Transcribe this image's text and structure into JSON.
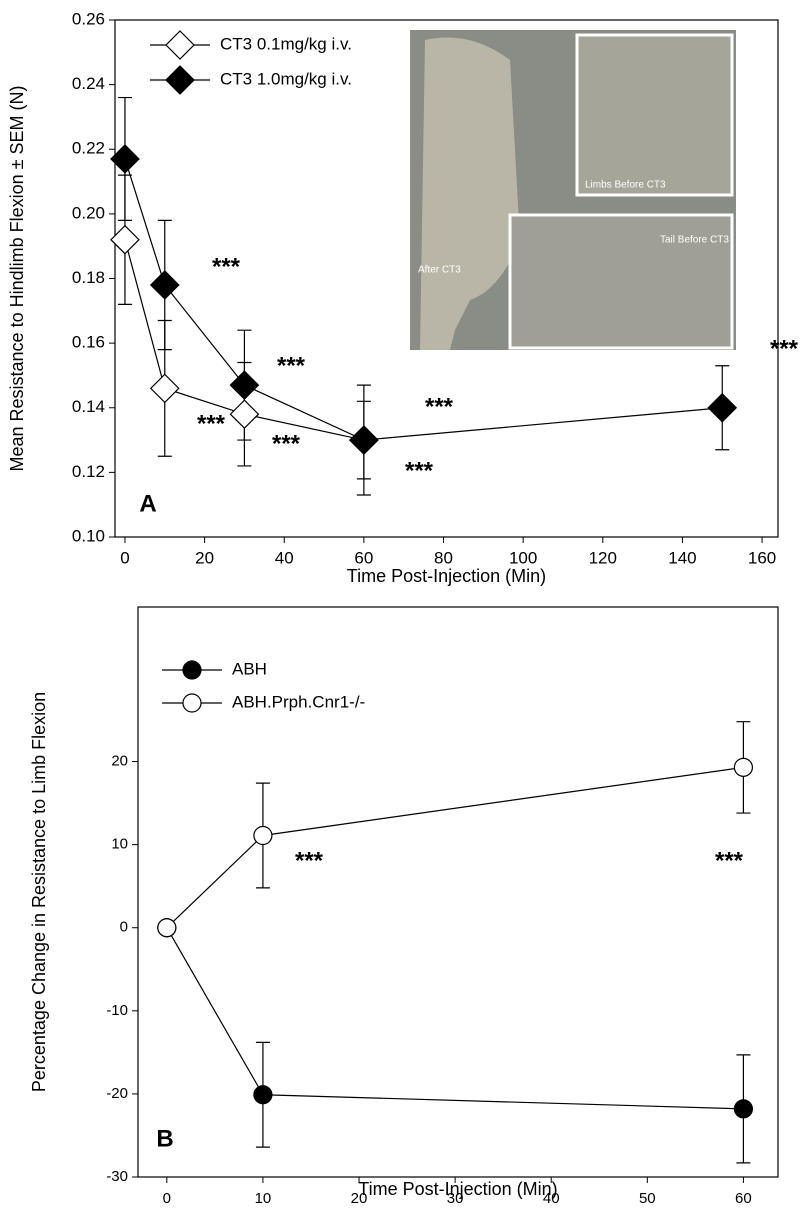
{
  "chart_data": [
    {
      "type": "line",
      "panel_label": "A",
      "x_label": "Time Post-Injection (Min)",
      "y_label": "Mean Resistance to Hindlimb Flexion ± SEM (N)",
      "xlim": [
        -2.5,
        164
      ],
      "ylim": [
        0.1,
        0.26
      ],
      "xticks": [
        0,
        20,
        40,
        60,
        80,
        100,
        120,
        140,
        160
      ],
      "yticks": [
        {
          "value": 0.1,
          "label": "0.10"
        },
        0.12,
        0.14,
        0.16,
        0.18,
        {
          "value": 0.2,
          "label": "0.20"
        },
        0.22,
        0.24,
        0.26
      ],
      "series": [
        {
          "name": "CT3 0.1mg/kg i.v.",
          "marker": "diamond",
          "color": "#ffffff",
          "x": [
            0,
            10,
            30,
            60
          ],
          "values": [
            0.192,
            0.146,
            0.138,
            0.13
          ],
          "errors": [
            0.02,
            0.021,
            0.016,
            0.017
          ]
        },
        {
          "name": "CT3 1.0mg/kg i.v.",
          "marker": "diamond",
          "color": "#000000",
          "x": [
            0,
            10,
            30,
            60,
            150
          ],
          "values": [
            0.217,
            0.178,
            0.147,
            0.13,
            0.14
          ],
          "errors": [
            0.019,
            0.02,
            0.017,
            0.012,
            0.013
          ]
        }
      ],
      "annotations": [
        "***",
        "***",
        "***",
        "***",
        "***",
        "***",
        "***"
      ],
      "inset_labels": [
        "Limbs Before  CT3",
        "Tail Before CT3",
        "After CT3"
      ]
    },
    {
      "type": "line",
      "panel_label": "B",
      "x_label": "Time Post-Injection (Min)",
      "y_label": "Percentage Change in Resistance to Limb Flexion",
      "xlim": [
        -3,
        63.6
      ],
      "ylim": [
        -30,
        38.6
      ],
      "xticks": [
        0,
        10,
        20,
        30,
        40,
        50,
        60
      ],
      "yticks": [
        -30,
        -20,
        -10,
        0,
        10,
        20
      ],
      "series": [
        {
          "name": "ABH",
          "marker": "circle",
          "color": "#000000",
          "x": [
            0,
            10,
            60
          ],
          "values": [
            0,
            -20.1,
            -21.8
          ],
          "errors": [
            0,
            6.3,
            6.5
          ]
        },
        {
          "name": "ABH.Prph.Cnr1-/-",
          "marker": "circle",
          "color": "#ffffff",
          "x": [
            0,
            10,
            60
          ],
          "values": [
            0,
            11.1,
            19.3
          ],
          "errors": [
            0,
            6.3,
            5.5
          ]
        }
      ],
      "annotations": [
        "***",
        "***"
      ]
    }
  ]
}
